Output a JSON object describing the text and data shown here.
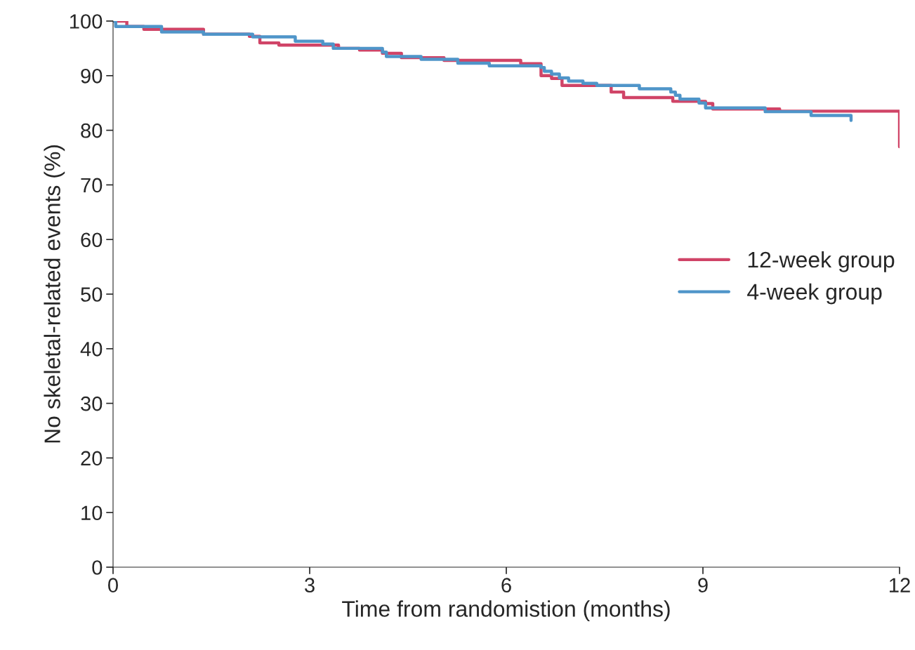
{
  "chart_data": {
    "type": "step",
    "xlabel": "Time from randomistion (months)",
    "ylabel": "No skeletal-related events (%)",
    "xlim": [
      0,
      12
    ],
    "ylim": [
      0,
      100
    ],
    "xticks": [
      0,
      3,
      6,
      9,
      12
    ],
    "yticks": [
      0,
      10,
      20,
      30,
      40,
      50,
      60,
      70,
      80,
      90,
      100
    ],
    "grid": false,
    "legend": "right",
    "series": [
      {
        "name": "12-week group",
        "color": "#d04467",
        "x": [
          0,
          0.21,
          0.47,
          1.38,
          2.08,
          2.24,
          2.53,
          3.44,
          3.76,
          4.11,
          4.4,
          5.05,
          6.22,
          6.53,
          6.69,
          6.85,
          7.6,
          7.79,
          8.54,
          9.04,
          9.15,
          10.17,
          12,
          12
        ],
        "values": [
          100,
          99,
          98.5,
          97.6,
          97.2,
          96,
          95.6,
          95,
          94.7,
          94.1,
          93.3,
          92.8,
          92.2,
          90,
          89.5,
          88.2,
          87,
          86,
          85.3,
          84.9,
          83.9,
          83.5,
          83.5,
          77
        ]
      },
      {
        "name": "4-week group",
        "color": "#4f95c9",
        "x": [
          0,
          0.04,
          0.74,
          1.38,
          2.13,
          2.78,
          3.2,
          3.36,
          4.11,
          4.17,
          4.7,
          5.26,
          5.74,
          6.53,
          6.58,
          6.69,
          6.81,
          6.95,
          7.17,
          7.38,
          8.03,
          8.51,
          8.58,
          8.65,
          8.94,
          9.04,
          9.95,
          10.65,
          11.26
        ],
        "values": [
          100,
          99,
          98,
          97.6,
          97.1,
          96.3,
          95.8,
          95,
          94.3,
          93.5,
          93,
          92.3,
          91.8,
          91.5,
          90.8,
          90.3,
          89.6,
          89,
          88.6,
          88.2,
          87.6,
          87,
          86.4,
          85.7,
          85,
          84.1,
          83.4,
          82.7,
          81.8
        ]
      }
    ]
  }
}
